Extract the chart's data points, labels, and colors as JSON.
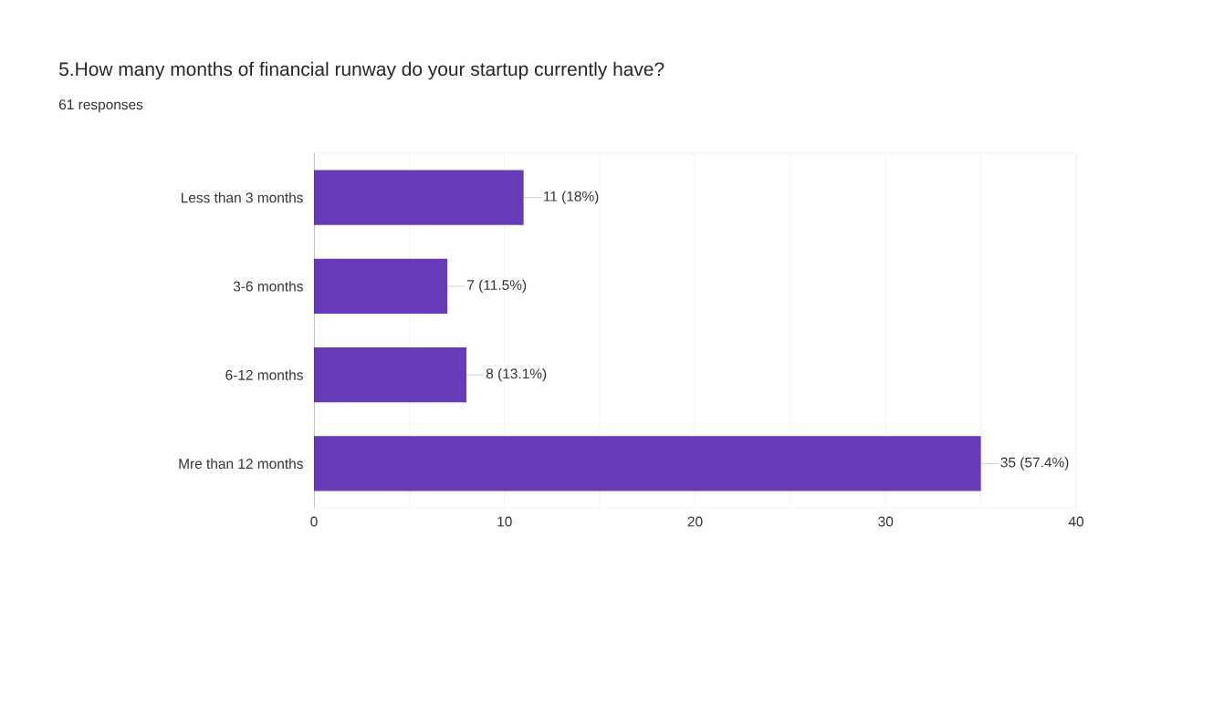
{
  "chart_data": {
    "type": "bar",
    "orientation": "horizontal",
    "title": "5.How many months of financial runway do your startup currently have?",
    "subtitle": "61 responses",
    "categories": [
      "Less than 3 months",
      "3-6 months",
      "6-12 months",
      "Mre than 12 months"
    ],
    "values": [
      11,
      7,
      8,
      35
    ],
    "value_labels": [
      "11 (18%)",
      "7 (11.5%)",
      "8 (13.1%)",
      "35 (57.4%)"
    ],
    "color": "#673ab7",
    "xlim": [
      0,
      40
    ],
    "xticks": [
      0,
      {
        "value": 5,
        "label": null
      },
      10,
      {
        "value": 15,
        "label": null
      },
      20,
      {
        "value": 25,
        "label": null
      },
      30,
      {
        "value": 35,
        "label": null
      },
      40
    ],
    "grid": "x"
  }
}
